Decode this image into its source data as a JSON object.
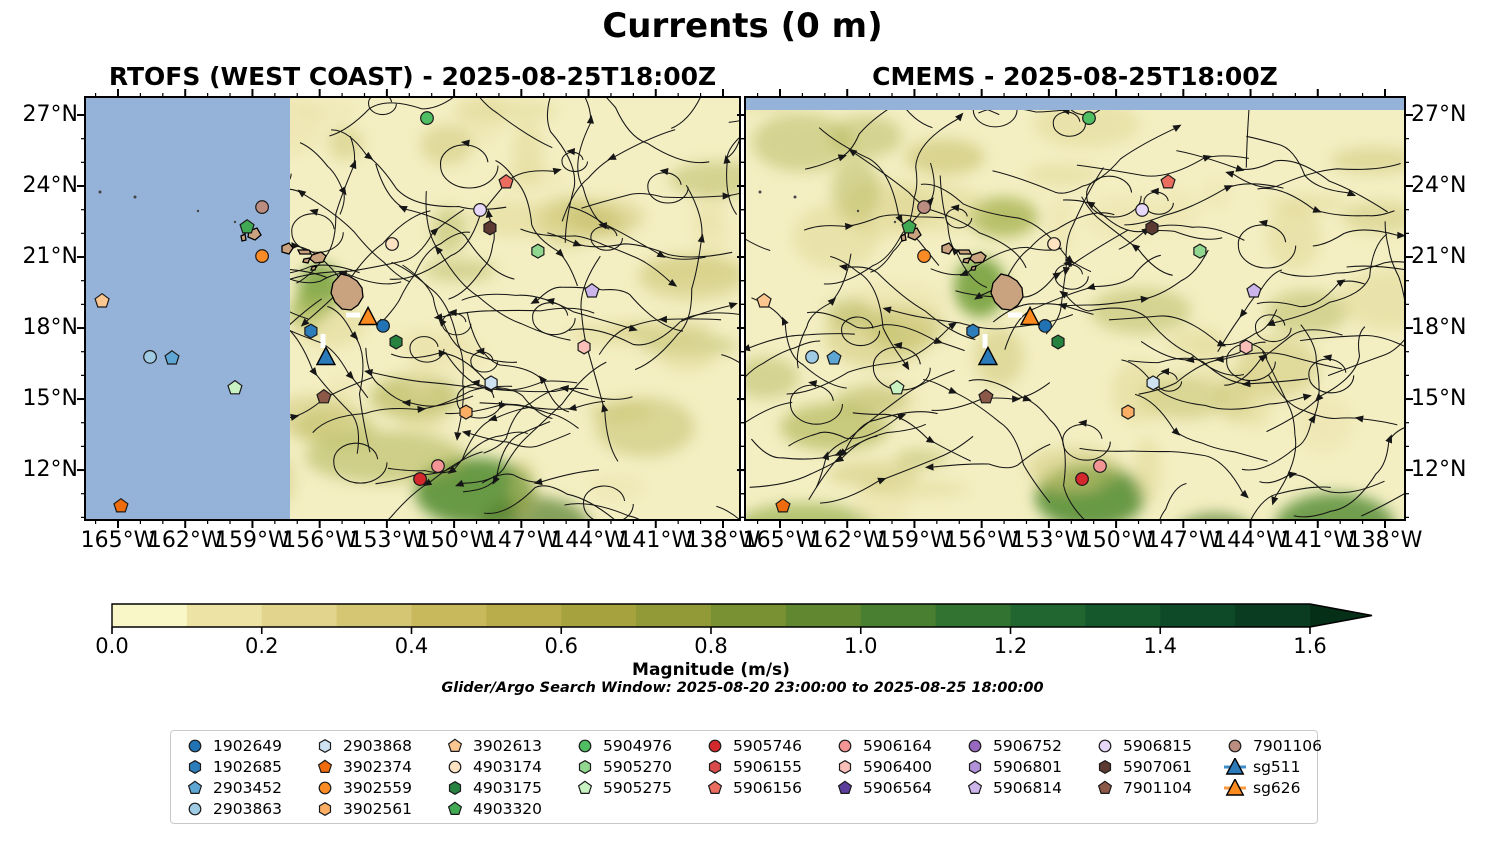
{
  "figure": {
    "title": "Currents (0 m)",
    "subtitle": "Glider/Argo Search Window: 2025-08-20 23:00:00 to 2025-08-25 18:00:00"
  },
  "panels": [
    {
      "title": "RTOFS (WEST COAST) - 2025-08-25T18:00Z"
    },
    {
      "title": "CMEMS - 2025-08-25T18:00Z"
    }
  ],
  "axes": {
    "lat_labels": [
      "27°N",
      "24°N",
      "21°N",
      "18°N",
      "15°N",
      "12°N"
    ],
    "lon_labels": [
      "165°W",
      "162°W",
      "159°W",
      "156°W",
      "153°W",
      "150°W",
      "147°W",
      "144°W",
      "141°W",
      "138°W"
    ]
  },
  "colorbar": {
    "label": "Magnitude (m/s)",
    "tick_labels": [
      "0.0",
      "0.2",
      "0.4",
      "0.6",
      "0.8",
      "1.0",
      "1.2",
      "1.4",
      "1.6"
    ],
    "segment_colors": [
      "#f9f6c7",
      "#ede3a4",
      "#e2d48c",
      "#d5c673",
      "#c8b95c",
      "#b8ad4a",
      "#a6a33e",
      "#919a36",
      "#7a9133",
      "#618831",
      "#487f31",
      "#327331",
      "#216630",
      "#15582c",
      "#0e4a27",
      "#093c20"
    ],
    "extend_color": "#062f18"
  },
  "colors": {
    "no_data_ocean": "#95b2d8",
    "field_base": "#f4efc3",
    "land": "#c9a380",
    "streamline": "#161616",
    "marker_edge": "#1a1a1a"
  },
  "legend": {
    "columns": [
      [
        "1902649",
        "1902685",
        "2903452",
        "2903863"
      ],
      [
        "2903868",
        "3902374",
        "3902559",
        "3902561"
      ],
      [
        "3902613",
        "4903174",
        "4903175",
        "4903320"
      ],
      [
        "5904976",
        "5905270",
        "5905275"
      ],
      [
        "5905746",
        "5906155",
        "5906156"
      ],
      [
        "5906164",
        "5906400",
        "5906564"
      ],
      [
        "5906752",
        "5906801",
        "5906814"
      ],
      [
        "5906815",
        "5907061",
        "7901104"
      ],
      [
        "7901106",
        "sg511",
        "sg626"
      ]
    ],
    "styles": {
      "1902649": {
        "shape": "circle",
        "color": "#2273b4"
      },
      "1902685": {
        "shape": "hexagon",
        "color": "#2e7dbb"
      },
      "2903452": {
        "shape": "pentagon",
        "color": "#5ea6d4"
      },
      "2903863": {
        "shape": "circle",
        "color": "#9fcbe4"
      },
      "2903868": {
        "shape": "hexagon",
        "color": "#cfe2f2"
      },
      "3902374": {
        "shape": "pentagon",
        "color": "#ee6c0e"
      },
      "3902559": {
        "shape": "circle",
        "color": "#fb8c25"
      },
      "3902561": {
        "shape": "hexagon",
        "color": "#fcae64"
      },
      "3902613": {
        "shape": "pentagon",
        "color": "#fcc690"
      },
      "4903174": {
        "shape": "circle",
        "color": "#fde3c2"
      },
      "4903175": {
        "shape": "hexagon",
        "color": "#27823f"
      },
      "4903320": {
        "shape": "pentagon",
        "color": "#41a854"
      },
      "5904976": {
        "shape": "circle",
        "color": "#4fbd61"
      },
      "5905270": {
        "shape": "hexagon",
        "color": "#92d78f"
      },
      "5905275": {
        "shape": "pentagon",
        "color": "#c9f2c3"
      },
      "5905746": {
        "shape": "circle",
        "color": "#d3282c"
      },
      "5906155": {
        "shape": "hexagon",
        "color": "#d94a4a"
      },
      "5906156": {
        "shape": "pentagon",
        "color": "#ea6d60"
      },
      "5906164": {
        "shape": "circle",
        "color": "#f49595"
      },
      "5906400": {
        "shape": "hexagon",
        "color": "#f9bfb8"
      },
      "5906564": {
        "shape": "pentagon",
        "color": "#5c3d9c"
      },
      "5906752": {
        "shape": "circle",
        "color": "#9768bf"
      },
      "5906801": {
        "shape": "hexagon",
        "color": "#b192d8"
      },
      "5906814": {
        "shape": "pentagon",
        "color": "#ccb5eb"
      },
      "5906815": {
        "shape": "circle",
        "color": "#e7d7f8"
      },
      "5907061": {
        "shape": "hexagon",
        "color": "#5c3a31"
      },
      "7901104": {
        "shape": "pentagon",
        "color": "#8c5848"
      },
      "7901106": {
        "shape": "circle",
        "color": "#bb8d80"
      },
      "sg511": {
        "shape": "triangle",
        "color": "#2b7bba",
        "line": "#3f8fca"
      },
      "sg626": {
        "shape": "triangle",
        "color": "#fb8b1e",
        "line": "#fb9a3c"
      }
    }
  },
  "chart_data": {
    "type": "heatmap",
    "subtype": "streamplot_current_magnitude_map_pair",
    "title": "Currents (0 m)",
    "panels": [
      "RTOFS (WEST COAST) - 2025-08-25T18:00Z",
      "CMEMS - 2025-08-25T18:00Z"
    ],
    "lon_ticks_deg_w": [
      165,
      162,
      159,
      156,
      153,
      150,
      147,
      144,
      141,
      138
    ],
    "lat_ticks_deg_n": [
      27,
      24,
      21,
      18,
      15,
      12
    ],
    "lon_extent_deg_w": [
      166.5,
      137.2
    ],
    "lat_extent_deg_n": [
      9.9,
      27.8
    ],
    "colorbar": {
      "label": "Magnitude (m/s)",
      "min": 0.0,
      "max": 1.6,
      "tick_step": 0.2,
      "extend": "max"
    },
    "rtofs_no_data_lon_w": [
      166.5,
      157.3
    ],
    "cmems_no_data_lat_n": [
      27.2,
      27.8
    ],
    "platform_positions": [
      {
        "id": "5904976",
        "lon_w": 151.21,
        "lat_n": 26.87
      },
      {
        "id": "5906156",
        "lon_w": 147.68,
        "lat_n": 24.17
      },
      {
        "id": "7901106",
        "lon_w": 158.57,
        "lat_n": 23.11
      },
      {
        "id": "5906815",
        "lon_w": 148.84,
        "lat_n": 22.99
      },
      {
        "id": "4903320",
        "lon_w": 159.24,
        "lat_n": 22.27
      },
      {
        "id": "5907061",
        "lon_w": 148.4,
        "lat_n": 22.23
      },
      {
        "id": "4903174",
        "lon_w": 152.77,
        "lat_n": 21.55
      },
      {
        "id": "5905270",
        "lon_w": 146.26,
        "lat_n": 21.25
      },
      {
        "id": "3902559",
        "lon_w": 158.57,
        "lat_n": 21.04
      },
      {
        "id": "5906814",
        "lon_w": 143.85,
        "lat_n": 19.56
      },
      {
        "id": "3902613",
        "lon_w": 165.71,
        "lat_n": 19.14
      },
      {
        "id": "1902649",
        "lon_w": 153.17,
        "lat_n": 18.09
      },
      {
        "id": "1902685",
        "lon_w": 156.39,
        "lat_n": 17.87
      },
      {
        "id": "4903175",
        "lon_w": 152.59,
        "lat_n": 17.41
      },
      {
        "id": "5906400",
        "lon_w": 144.2,
        "lat_n": 17.2
      },
      {
        "id": "2903863",
        "lon_w": 163.57,
        "lat_n": 16.78
      },
      {
        "id": "2903452",
        "lon_w": 162.59,
        "lat_n": 16.73
      },
      {
        "id": "2903868",
        "lon_w": 148.35,
        "lat_n": 15.68
      },
      {
        "id": "5905275",
        "lon_w": 159.78,
        "lat_n": 15.47
      },
      {
        "id": "7901104",
        "lon_w": 155.81,
        "lat_n": 15.09
      },
      {
        "id": "3902561",
        "lon_w": 149.47,
        "lat_n": 14.45
      },
      {
        "id": "5906164",
        "lon_w": 150.72,
        "lat_n": 12.17
      },
      {
        "id": "5905746",
        "lon_w": 151.52,
        "lat_n": 11.62
      },
      {
        "id": "3902374",
        "lon_w": 164.87,
        "lat_n": 10.48
      },
      {
        "id": "sg511",
        "lon_w": 155.72,
        "lat_n": 16.78
      },
      {
        "id": "sg626",
        "lon_w": 153.84,
        "lat_n": 18.47
      }
    ],
    "track_marks": [
      {
        "id": "sg626-track",
        "lon_w": 154.51,
        "lat_n": 18.55,
        "dir": "h"
      },
      {
        "id": "sg511-track",
        "lon_w": 155.85,
        "lat_n": 17.45,
        "dir": "v"
      }
    ]
  }
}
